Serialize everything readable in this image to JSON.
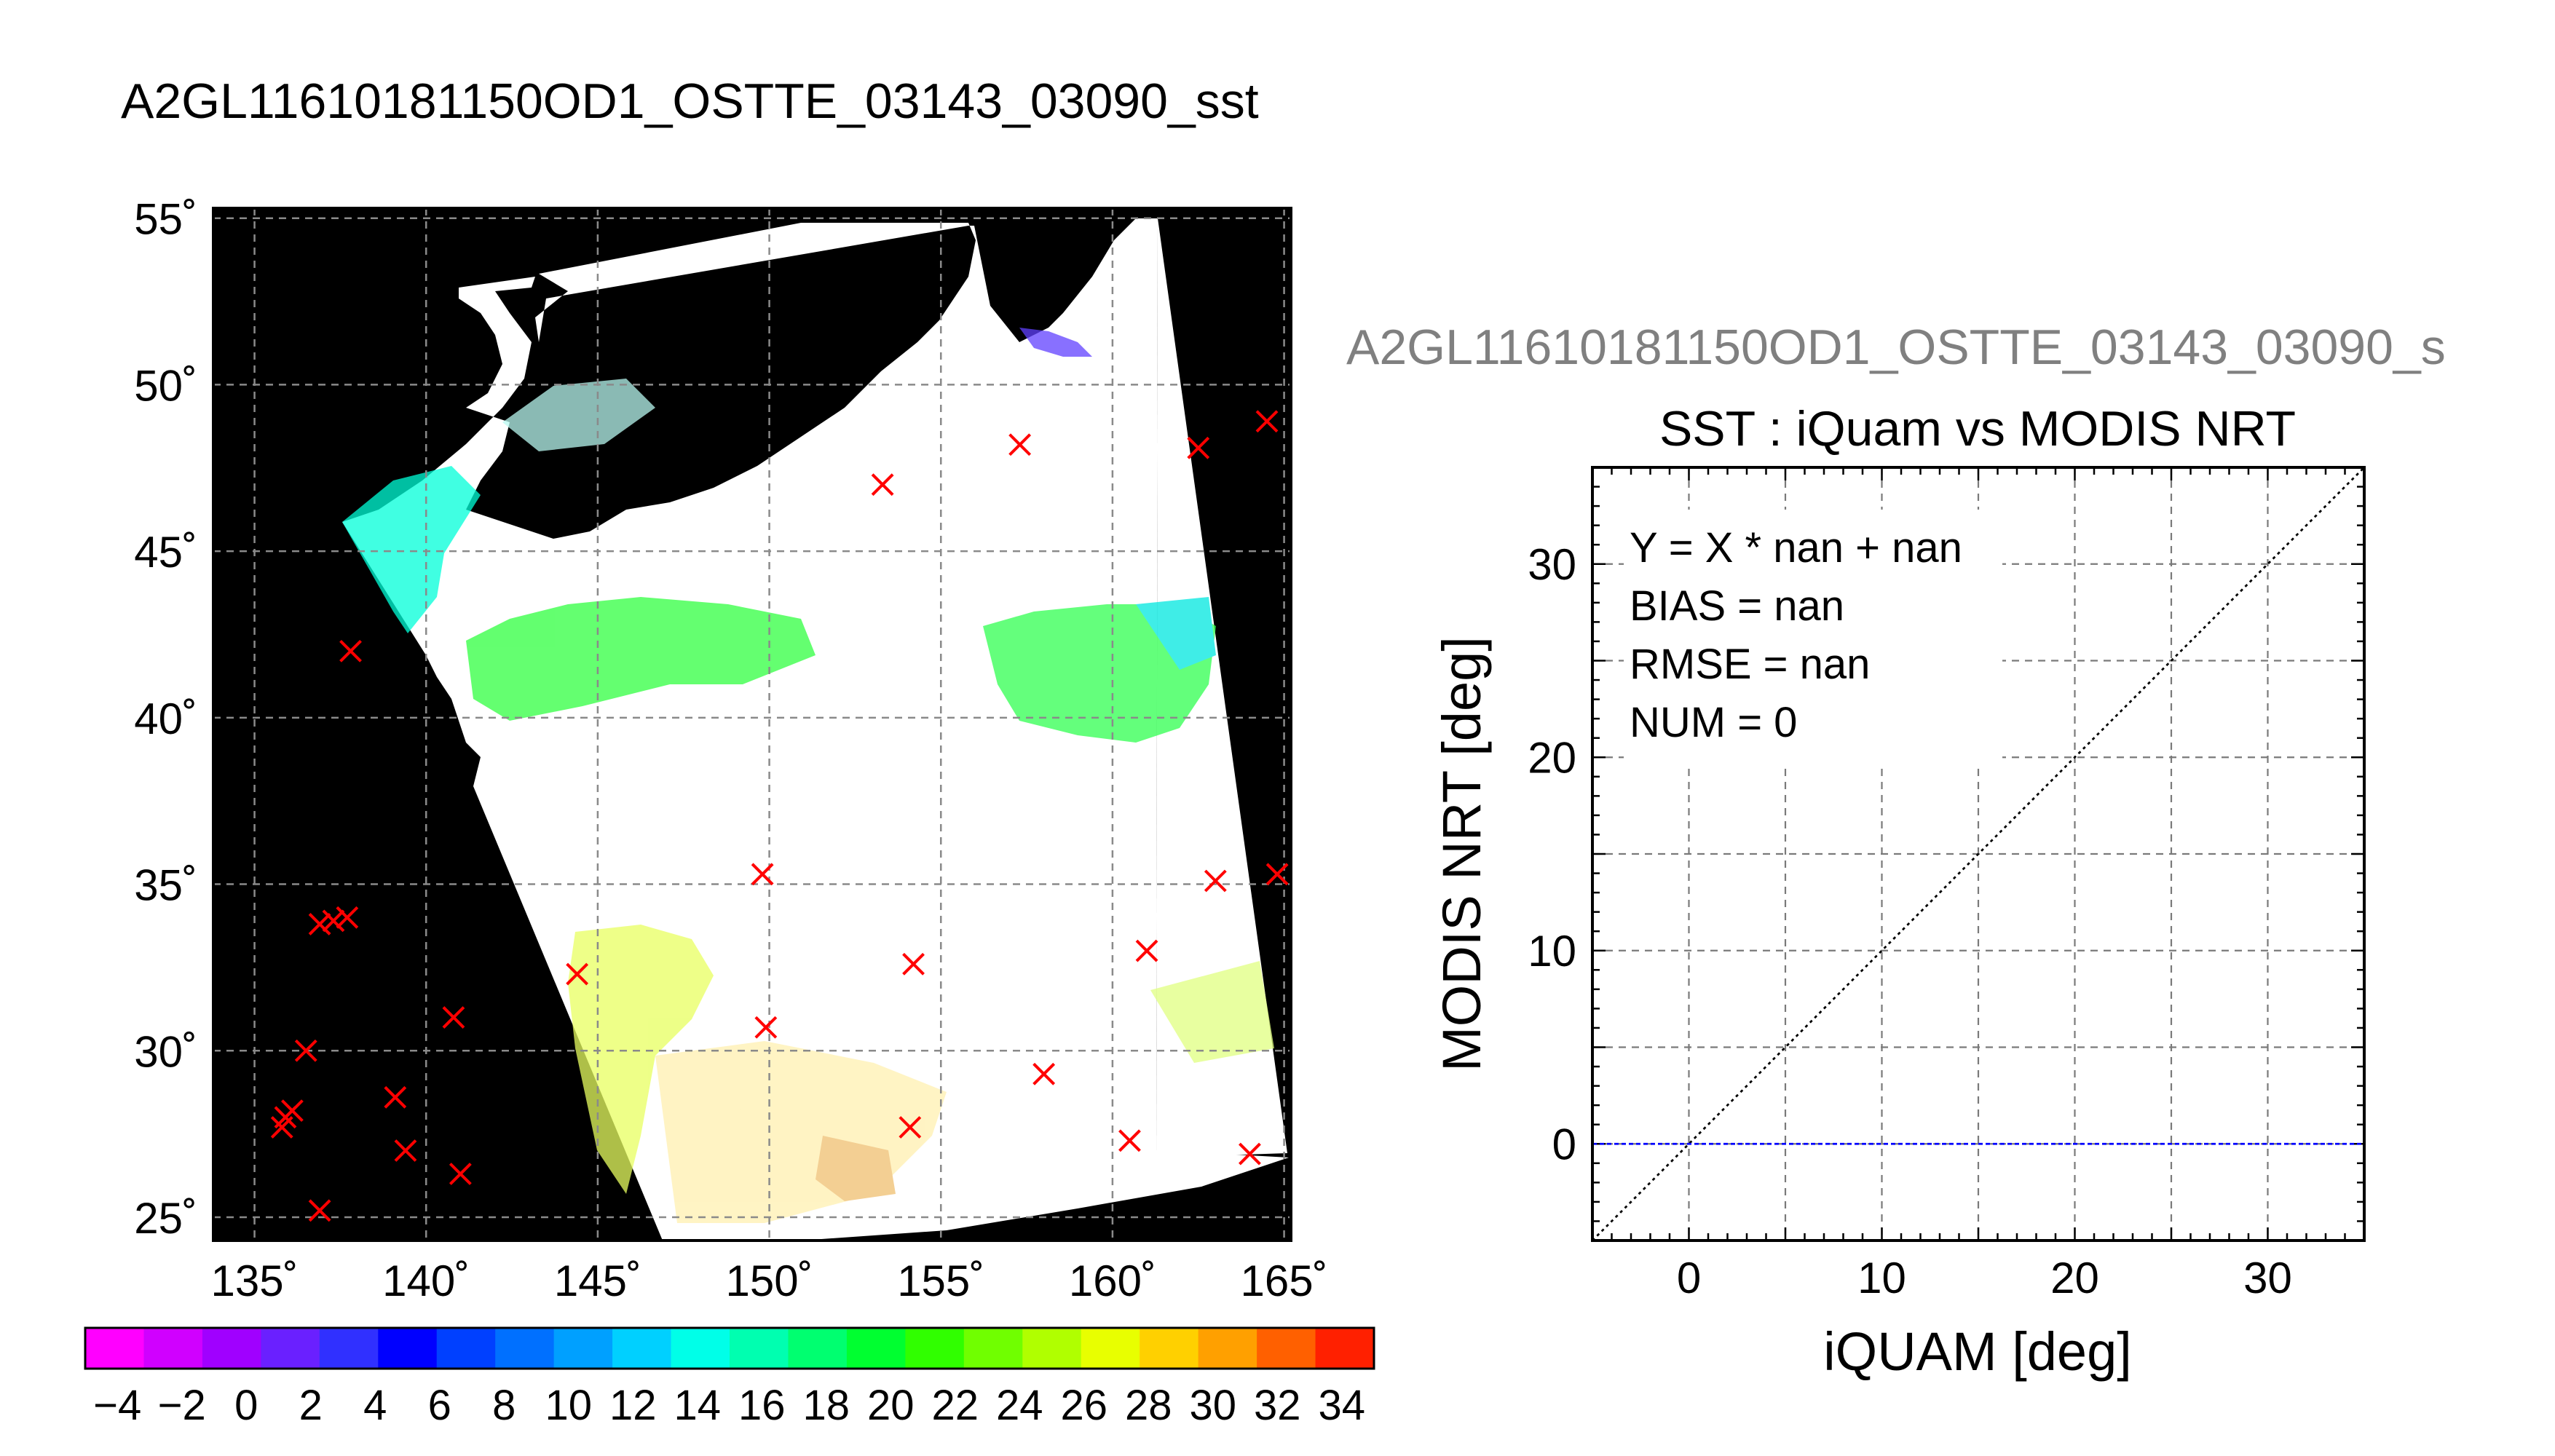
{
  "map_panel": {
    "title": "A2GL11610181150OD1_OSTTE_03143_03090_sst",
    "lat_ticks": [
      {
        "value": 55,
        "label": "55˚"
      },
      {
        "value": 50,
        "label": "50˚"
      },
      {
        "value": 45,
        "label": "45˚"
      },
      {
        "value": 40,
        "label": "40˚"
      },
      {
        "value": 35,
        "label": "35˚"
      },
      {
        "value": 30,
        "label": "30˚"
      },
      {
        "value": 25,
        "label": "25˚"
      }
    ],
    "lon_ticks": [
      {
        "value": 135,
        "label": "135˚"
      },
      {
        "value": 140,
        "label": "140˚"
      },
      {
        "value": 145,
        "label": "145˚"
      },
      {
        "value": 150,
        "label": "150˚"
      },
      {
        "value": 155,
        "label": "155˚"
      },
      {
        "value": 160,
        "label": "160˚"
      },
      {
        "value": 165,
        "label": "165˚"
      }
    ],
    "lon_range": [
      133.8,
      165.2
    ],
    "lat_range": [
      24.3,
      55.3
    ],
    "gridlines": true,
    "swath_fill": "#ffffff",
    "land_fill": "#000000",
    "buoy_marker_color": "#ff0000",
    "buoys": [
      [
        153.3,
        47.0
      ],
      [
        157.3,
        48.2
      ],
      [
        162.5,
        48.1
      ],
      [
        164.5,
        48.9
      ],
      [
        137.8,
        42.0
      ],
      [
        149.8,
        35.3
      ],
      [
        163.0,
        35.1
      ],
      [
        164.8,
        35.3
      ],
      [
        136.9,
        33.8
      ],
      [
        137.3,
        33.9
      ],
      [
        137.7,
        34.0
      ],
      [
        144.4,
        32.3
      ],
      [
        154.2,
        32.6
      ],
      [
        161.0,
        33.0
      ],
      [
        140.8,
        31.0
      ],
      [
        149.9,
        30.7
      ],
      [
        136.5,
        30.0
      ],
      [
        158.0,
        29.3
      ],
      [
        139.1,
        28.6
      ],
      [
        135.9,
        28.0
      ],
      [
        136.1,
        28.2
      ],
      [
        135.8,
        27.7
      ],
      [
        139.4,
        27.0
      ],
      [
        154.1,
        27.7
      ],
      [
        160.5,
        27.3
      ],
      [
        164.0,
        26.9
      ],
      [
        141.0,
        26.3
      ],
      [
        136.9,
        25.2
      ]
    ]
  },
  "colorbar": {
    "min": -5,
    "max": 35,
    "step": 2,
    "colors": [
      "#ff00ff",
      "#d000ff",
      "#a000ff",
      "#6a20ff",
      "#3030ff",
      "#0000ff",
      "#0040ff",
      "#0070ff",
      "#00a0ff",
      "#00d0ff",
      "#00ffe8",
      "#00ffb0",
      "#00ff70",
      "#00ff30",
      "#30ff00",
      "#70ff00",
      "#b0ff00",
      "#e8ff00",
      "#ffd000",
      "#ffa000",
      "#ff6000",
      "#ff2000"
    ],
    "tick_values": [
      -4,
      -2,
      0,
      2,
      4,
      6,
      8,
      10,
      12,
      14,
      16,
      18,
      20,
      22,
      24,
      26,
      28,
      30,
      32,
      34
    ],
    "tick_labels": [
      "−4",
      "−2",
      "0",
      "2",
      "4",
      "6",
      "8",
      "10",
      "12",
      "14",
      "16",
      "18",
      "20",
      "22",
      "24",
      "26",
      "28",
      "30",
      "32",
      "34"
    ]
  },
  "chart_data": {
    "type": "scatter",
    "suptitle": "A2GL11610181150OD1_OSTTE_03143_03090_s",
    "title": "SST : iQuam vs MODIS NRT",
    "xlabel": "iQUAM [deg]",
    "ylabel": "MODIS NRT [deg]",
    "xlim": [
      -5,
      35
    ],
    "ylim": [
      -5,
      35
    ],
    "xticks": [
      0,
      10,
      20,
      30
    ],
    "yticks": [
      0,
      10,
      20,
      30
    ],
    "grid": true,
    "points": [],
    "annotations": [
      "Y = X * nan + nan",
      "BIAS = nan",
      "RMSE = nan",
      "NUM = 0"
    ],
    "reference_lines": [
      {
        "kind": "identity",
        "style": "dotted",
        "color": "#000000"
      },
      {
        "kind": "horizontal",
        "y": 0,
        "style": "dashed",
        "color": "#0000ff"
      }
    ]
  }
}
